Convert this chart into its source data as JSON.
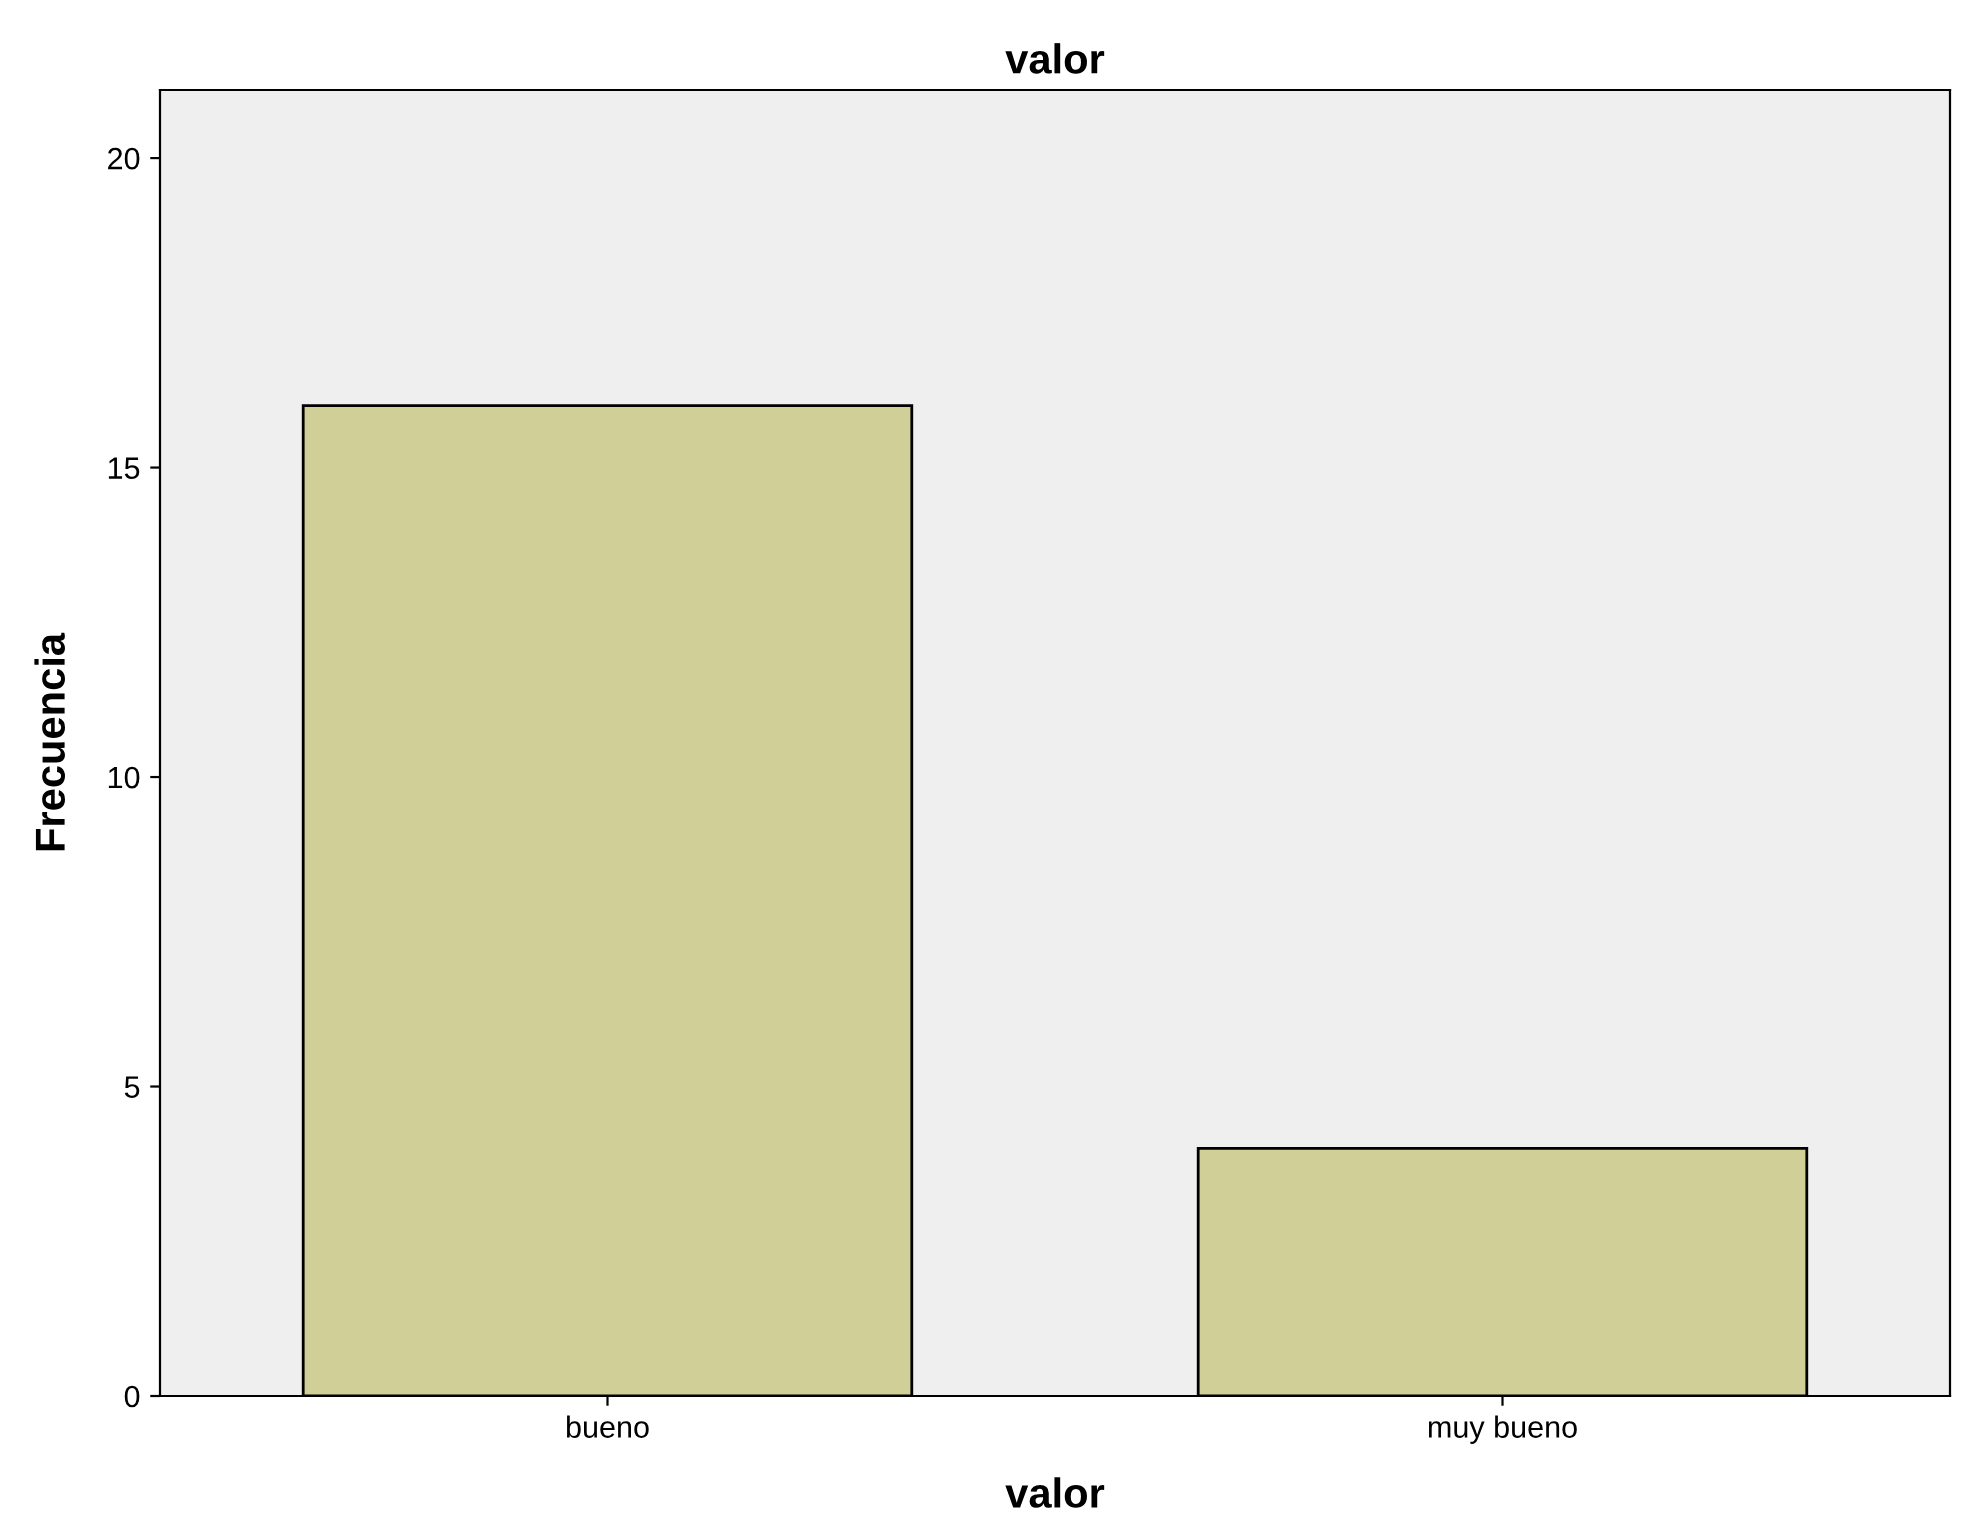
{
  "chart_data": {
    "type": "bar",
    "title": "valor",
    "xlabel": "valor",
    "ylabel": "Frecuencia",
    "categories": [
      "bueno",
      "muy bueno"
    ],
    "values": [
      16,
      4
    ],
    "color": "#d1cf98",
    "ylim": [
      0,
      21.1
    ],
    "yticks": [
      0,
      5,
      10,
      15,
      20
    ],
    "grid": false,
    "legend": false
  }
}
